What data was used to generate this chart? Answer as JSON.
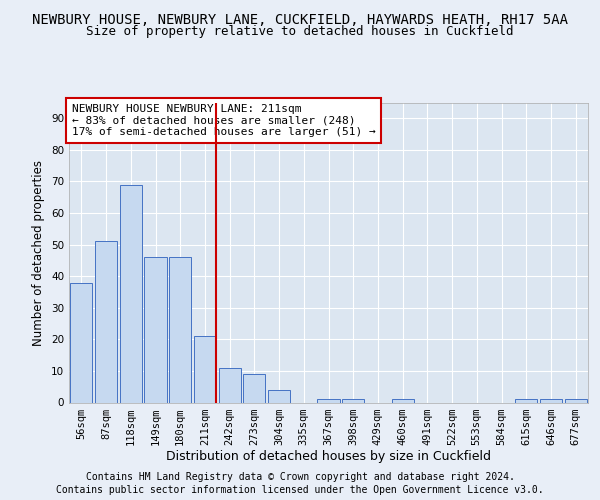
{
  "title_line1": "NEWBURY HOUSE, NEWBURY LANE, CUCKFIELD, HAYWARDS HEATH, RH17 5AA",
  "title_line2": "Size of property relative to detached houses in Cuckfield",
  "xlabel": "Distribution of detached houses by size in Cuckfield",
  "ylabel": "Number of detached properties",
  "footnote1": "Contains HM Land Registry data © Crown copyright and database right 2024.",
  "footnote2": "Contains public sector information licensed under the Open Government Licence v3.0.",
  "bar_labels": [
    "56sqm",
    "87sqm",
    "118sqm",
    "149sqm",
    "180sqm",
    "211sqm",
    "242sqm",
    "273sqm",
    "304sqm",
    "335sqm",
    "367sqm",
    "398sqm",
    "429sqm",
    "460sqm",
    "491sqm",
    "522sqm",
    "553sqm",
    "584sqm",
    "615sqm",
    "646sqm",
    "677sqm"
  ],
  "bar_values": [
    38,
    51,
    69,
    46,
    46,
    21,
    11,
    9,
    4,
    0,
    1,
    1,
    0,
    1,
    0,
    0,
    0,
    0,
    1,
    1,
    1
  ],
  "bar_color": "#c6d9f0",
  "bar_edge_color": "#4472c4",
  "highlight_index": 5,
  "highlight_line_color": "#cc0000",
  "ylim": [
    0,
    95
  ],
  "yticks": [
    0,
    10,
    20,
    30,
    40,
    50,
    60,
    70,
    80,
    90
  ],
  "background_color": "#e8eef7",
  "plot_bg_color": "#dce6f1",
  "grid_color": "#ffffff",
  "annotation_box_color": "#ffffff",
  "annotation_border_color": "#cc0000",
  "annotation_line1": "NEWBURY HOUSE NEWBURY LANE: 211sqm",
  "annotation_line2": "← 83% of detached houses are smaller (248)",
  "annotation_line3": "17% of semi-detached houses are larger (51) →",
  "title_fontsize": 10,
  "subtitle_fontsize": 9,
  "axis_label_fontsize": 8.5,
  "tick_fontsize": 7.5,
  "annotation_fontsize": 8
}
